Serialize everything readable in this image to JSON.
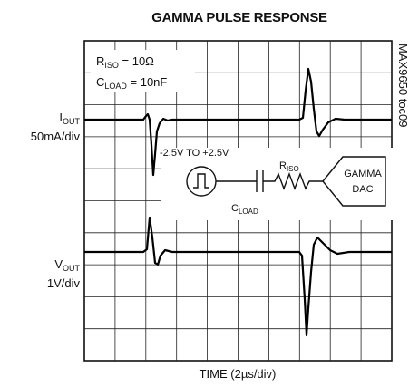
{
  "title": "GAMMA PULSE RESPONSE",
  "annotations": {
    "riso": {
      "main": "R",
      "sub": "ISO",
      "rest": " = 10Ω"
    },
    "cload": {
      "main": "C",
      "sub": "LOAD",
      "rest": " = 10nF"
    }
  },
  "channels": [
    {
      "name": {
        "main": "I",
        "sub": "OUT"
      },
      "scale": "50mA/div"
    },
    {
      "name": {
        "main": "V",
        "sub": "OUT"
      },
      "scale": "1V/div"
    }
  ],
  "circuit": {
    "source_label": "-2.5V TO +2.5V",
    "r_label": {
      "main": "R",
      "sub": "ISO"
    },
    "c_label": {
      "main": "C",
      "sub": "LOAD"
    },
    "dac_line1": "GAMMA",
    "dac_line2": "DAC"
  },
  "x_label": "TIME (2µs/div)",
  "figure_id": "MAX9650 toc09"
}
